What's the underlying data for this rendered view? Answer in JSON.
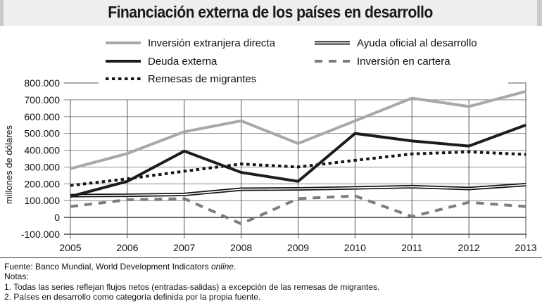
{
  "chart_data": {
    "type": "line",
    "title": "Financiación externa de los países en desarrollo",
    "xlabel": "",
    "ylabel": "millones de dólares",
    "x": [
      "2005",
      "2006",
      "2007",
      "2008",
      "2009",
      "2010",
      "2011",
      "2012",
      "2013"
    ],
    "ylim": [
      -100000,
      800000
    ],
    "yticks": [
      800000,
      700000,
      600000,
      500000,
      400000,
      300000,
      200000,
      100000,
      0,
      -100000
    ],
    "ytick_labels": [
      "800.000",
      "700.000",
      "600.000",
      "500.000",
      "400.000",
      "300.000",
      "200.000",
      "100.000",
      "0",
      "-100.000"
    ],
    "grid": true,
    "legend_position": "top",
    "series": [
      {
        "key": "ied",
        "name": "Inversión extranjera directa",
        "style": "solid-light-gray",
        "color": "#a6a6a6",
        "values": [
          290000,
          380000,
          510000,
          575000,
          440000,
          575000,
          710000,
          660000,
          750000
        ]
      },
      {
        "key": "aod",
        "name": "Ayuda oficial al desarrollo",
        "style": "double-line",
        "color": "#111111",
        "values": [
          130000,
          132000,
          137000,
          168000,
          170000,
          176000,
          183000,
          172000,
          195000
        ]
      },
      {
        "key": "deuda",
        "name": "Deuda externa",
        "style": "solid-thick-black",
        "color": "#1a1a1a",
        "values": [
          125000,
          215000,
          395000,
          268000,
          215000,
          500000,
          455000,
          425000,
          550000
        ]
      },
      {
        "key": "cartera",
        "name": "Inversión en cartera",
        "style": "dashed-gray",
        "color": "#7a7a7a",
        "values": [
          65000,
          105000,
          112000,
          -38000,
          112000,
          128000,
          5000,
          90000,
          65000
        ]
      },
      {
        "key": "remesas",
        "name": "Remesas de migrantes",
        "style": "dotted-black",
        "color": "#111111",
        "values": [
          190000,
          230000,
          275000,
          318000,
          300000,
          340000,
          378000,
          390000,
          375000
        ]
      }
    ]
  },
  "footer": {
    "source_prefix": "Fuente: Banco Mundial, World Development Indicators ",
    "source_italic": "online",
    "source_suffix": ".",
    "notes_label": "Notas:",
    "note1": "1. Todas las series reflejan flujos netos (entradas-salidas) a excepción de las remesas de migrantes.",
    "note2": "2. Países en desarrollo como categoría definida por la propia fuente."
  }
}
